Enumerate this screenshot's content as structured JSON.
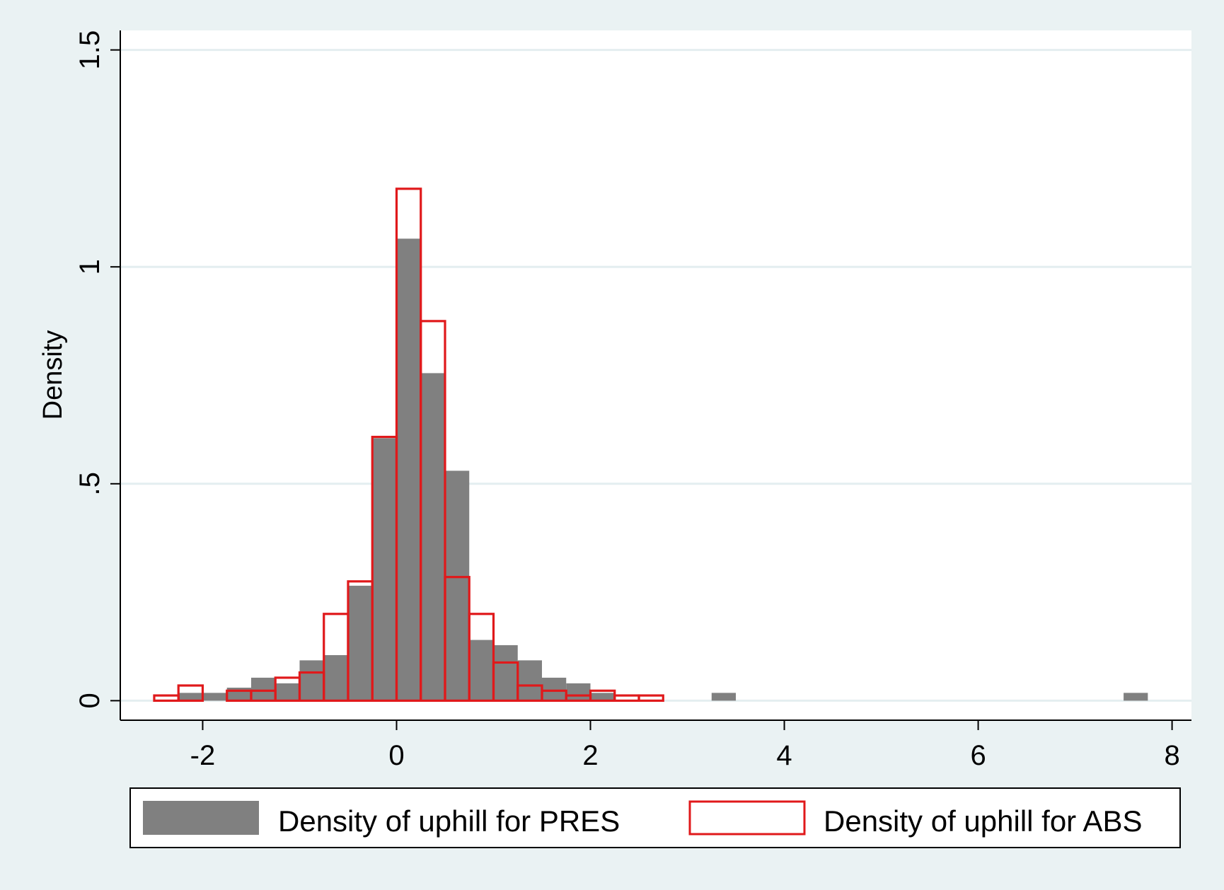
{
  "chart_data": {
    "type": "bar",
    "title": "",
    "xlabel": "",
    "ylabel": "Density",
    "xlim": [
      -2.85,
      8.2
    ],
    "ylim": [
      -0.045,
      1.545
    ],
    "x_ticks": [
      -2,
      0,
      2,
      4,
      6,
      8
    ],
    "x_tick_labels": [
      "-2",
      "0",
      "2",
      "4",
      "6",
      "8"
    ],
    "y_ticks": [
      0,
      0.5,
      1,
      1.5
    ],
    "y_tick_labels": [
      "0",
      ".5",
      "1",
      "1.5"
    ],
    "grid": "horizontal",
    "legend_position": "bottom",
    "series": [
      {
        "name": "Density of uphill for PRES",
        "style": "filled",
        "color": "#808080",
        "bins": [
          {
            "x0": -2.25,
            "x1": -2.0,
            "y": 0.018
          },
          {
            "x0": -2.0,
            "x1": -1.75,
            "y": 0.018
          },
          {
            "x0": -1.75,
            "x1": -1.5,
            "y": 0.03
          },
          {
            "x0": -1.5,
            "x1": -1.25,
            "y": 0.053
          },
          {
            "x0": -1.25,
            "x1": -1.0,
            "y": 0.04
          },
          {
            "x0": -1.0,
            "x1": -0.75,
            "y": 0.093
          },
          {
            "x0": -0.75,
            "x1": -0.5,
            "y": 0.105
          },
          {
            "x0": -0.5,
            "x1": -0.25,
            "y": 0.265
          },
          {
            "x0": -0.25,
            "x1": 0.0,
            "y": 0.605
          },
          {
            "x0": 0.0,
            "x1": 0.25,
            "y": 1.065
          },
          {
            "x0": 0.25,
            "x1": 0.5,
            "y": 0.755
          },
          {
            "x0": 0.5,
            "x1": 0.75,
            "y": 0.53
          },
          {
            "x0": 0.75,
            "x1": 1.0,
            "y": 0.14
          },
          {
            "x0": 1.0,
            "x1": 1.25,
            "y": 0.128
          },
          {
            "x0": 1.25,
            "x1": 1.5,
            "y": 0.093
          },
          {
            "x0": 1.5,
            "x1": 1.75,
            "y": 0.053
          },
          {
            "x0": 1.75,
            "x1": 2.0,
            "y": 0.04
          },
          {
            "x0": 2.0,
            "x1": 2.25,
            "y": 0.018
          },
          {
            "x0": 3.25,
            "x1": 3.5,
            "y": 0.018
          },
          {
            "x0": 7.5,
            "x1": 7.75,
            "y": 0.018
          }
        ]
      },
      {
        "name": "Density of uphill for ABS",
        "style": "outline",
        "color": "#e0191b",
        "bins": [
          {
            "x0": -2.5,
            "x1": -2.25,
            "y": 0.012
          },
          {
            "x0": -2.25,
            "x1": -2.0,
            "y": 0.035
          },
          {
            "x0": -1.75,
            "x1": -1.5,
            "y": 0.023
          },
          {
            "x0": -1.5,
            "x1": -1.25,
            "y": 0.023
          },
          {
            "x0": -1.25,
            "x1": -1.0,
            "y": 0.053
          },
          {
            "x0": -1.0,
            "x1": -0.75,
            "y": 0.065
          },
          {
            "x0": -0.75,
            "x1": -0.5,
            "y": 0.2
          },
          {
            "x0": -0.5,
            "x1": -0.25,
            "y": 0.275
          },
          {
            "x0": -0.25,
            "x1": 0.0,
            "y": 0.608
          },
          {
            "x0": 0.0,
            "x1": 0.25,
            "y": 1.18
          },
          {
            "x0": 0.25,
            "x1": 0.5,
            "y": 0.875
          },
          {
            "x0": 0.5,
            "x1": 0.75,
            "y": 0.285
          },
          {
            "x0": 0.75,
            "x1": 1.0,
            "y": 0.2
          },
          {
            "x0": 1.0,
            "x1": 1.25,
            "y": 0.088
          },
          {
            "x0": 1.25,
            "x1": 1.5,
            "y": 0.035
          },
          {
            "x0": 1.5,
            "x1": 1.75,
            "y": 0.023
          },
          {
            "x0": 1.75,
            "x1": 2.0,
            "y": 0.012
          },
          {
            "x0": 2.0,
            "x1": 2.25,
            "y": 0.023
          },
          {
            "x0": 2.25,
            "x1": 2.5,
            "y": 0.012
          },
          {
            "x0": 2.5,
            "x1": 2.75,
            "y": 0.012
          }
        ]
      }
    ]
  },
  "colors": {
    "background": "#eaf2f3",
    "plot_area": "#ffffff",
    "gridline": "#e4eef0",
    "axis": "#000000",
    "legend_box": "#ffffff"
  }
}
